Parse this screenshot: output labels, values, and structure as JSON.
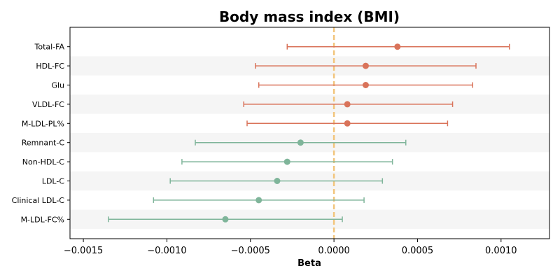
{
  "chart_data": {
    "type": "forest",
    "title": "Body mass index (BMI)",
    "xlabel": "Beta",
    "ylabel": "",
    "xlim": [
      -0.00158,
      0.00129
    ],
    "reference_line": 0,
    "grid": false,
    "alternating_row_shading": true,
    "xticks": [
      {
        "value": -0.0015,
        "label": "−0.0015"
      },
      {
        "value": -0.001,
        "label": "−0.0010"
      },
      {
        "value": -0.0005,
        "label": "−0.0005"
      },
      {
        "value": 0,
        "label": "0.0000"
      },
      {
        "value": 0.0005,
        "label": "0.0005"
      },
      {
        "value": 0.001,
        "label": "0.0010"
      }
    ],
    "rows": [
      {
        "label": "Total-FA",
        "beta": 0.00038,
        "lower": -0.00028,
        "upper": 0.00105,
        "direction": "positive"
      },
      {
        "label": "HDL-FC",
        "beta": 0.00019,
        "lower": -0.00047,
        "upper": 0.00085,
        "direction": "positive"
      },
      {
        "label": "Glu",
        "beta": 0.00019,
        "lower": -0.00045,
        "upper": 0.00083,
        "direction": "positive"
      },
      {
        "label": "VLDL-FC",
        "beta": 8e-05,
        "lower": -0.00054,
        "upper": 0.00071,
        "direction": "positive"
      },
      {
        "label": "M-LDL-PL%",
        "beta": 8e-05,
        "lower": -0.00052,
        "upper": 0.00068,
        "direction": "positive"
      },
      {
        "label": "Remnant-C",
        "beta": -0.0002,
        "lower": -0.00083,
        "upper": 0.00043,
        "direction": "negative"
      },
      {
        "label": "Non-HDL-C",
        "beta": -0.00028,
        "lower": -0.00091,
        "upper": 0.00035,
        "direction": "negative"
      },
      {
        "label": "LDL-C",
        "beta": -0.00034,
        "lower": -0.00098,
        "upper": 0.00029,
        "direction": "negative"
      },
      {
        "label": "Clinical LDL-C",
        "beta": -0.00045,
        "lower": -0.00108,
        "upper": 0.00018,
        "direction": "negative"
      },
      {
        "label": "M-LDL-FC%",
        "beta": -0.00065,
        "lower": -0.00135,
        "upper": 5e-05,
        "direction": "negative"
      }
    ],
    "colors": {
      "positive": "#d9735a",
      "negative": "#7fb59a",
      "reference_line": "#f2c57c",
      "row_shade": "#f5f5f5"
    }
  }
}
